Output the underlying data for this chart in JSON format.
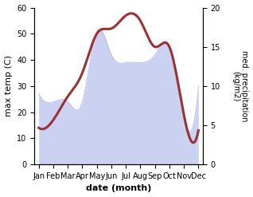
{
  "months": [
    "Jan",
    "Feb",
    "Mar",
    "Apr",
    "May",
    "Jun",
    "Jul",
    "Aug",
    "Sep",
    "Oct",
    "Nov",
    "Dec"
  ],
  "month_indices": [
    0,
    1,
    2,
    3,
    4,
    5,
    6,
    7,
    8,
    9,
    10,
    11
  ],
  "precipitation": [
    9,
    8,
    8,
    8,
    17,
    14,
    13,
    13,
    14,
    15,
    6,
    10
  ],
  "max_temp_C": [
    14,
    17,
    26,
    35,
    50,
    52,
    57,
    55,
    45,
    45,
    19,
    13
  ],
  "temp_ylim": [
    0,
    60
  ],
  "precip_ylim": [
    0,
    20
  ],
  "temp_color": "#993333",
  "precip_fill_color": "#c5ccf0",
  "precip_edge_color": "#aab4e8",
  "xlabel": "date (month)",
  "ylabel_left": "max temp (C)",
  "ylabel_right": "med. precipitation\n(kg/m2)",
  "bg_color": "#ffffff",
  "temp_lw": 2.2
}
